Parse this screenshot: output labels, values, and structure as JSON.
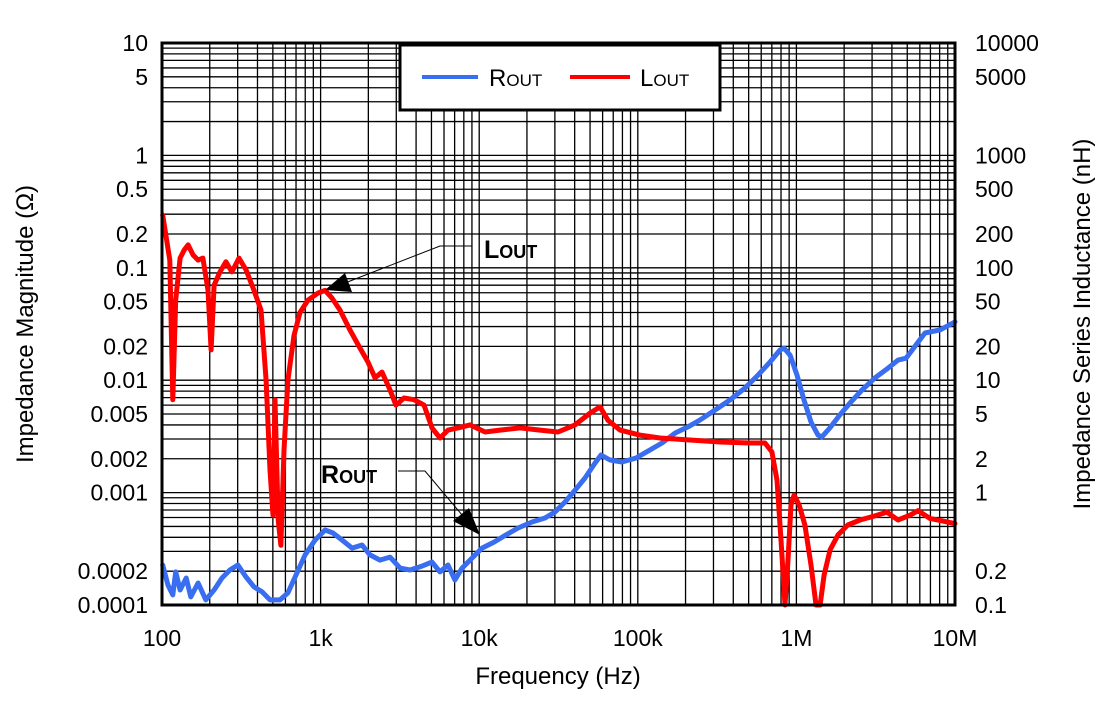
{
  "chart_data": {
    "type": "line",
    "title": "",
    "xlabel": "Frequency (Hz)",
    "ylabel": "Impedance Magnitude (Ω)",
    "y2label": "Impedance Series Inductance (nH)",
    "xscale": "log",
    "yscale": "log",
    "xlim": [
      100,
      10000000
    ],
    "ylim": [
      0.0001,
      10
    ],
    "y2lim": [
      0.1,
      10000
    ],
    "grid": true,
    "legend_position": "top-center",
    "x_ticks": [
      {
        "v": 100,
        "label": "100"
      },
      {
        "v": 1000,
        "label": "1k"
      },
      {
        "v": 10000,
        "label": "10k"
      },
      {
        "v": 100000,
        "label": "100k"
      },
      {
        "v": 1000000,
        "label": "1M"
      },
      {
        "v": 10000000,
        "label": "10M"
      }
    ],
    "y_ticks": [
      {
        "v": 10,
        "label": "10"
      },
      {
        "v": 5,
        "label": "5"
      },
      {
        "v": 1,
        "label": "1"
      },
      {
        "v": 0.5,
        "label": "0.5"
      },
      {
        "v": 0.2,
        "label": "0.2"
      },
      {
        "v": 0.1,
        "label": "0.1"
      },
      {
        "v": 0.05,
        "label": "0.05"
      },
      {
        "v": 0.02,
        "label": "0.02"
      },
      {
        "v": 0.01,
        "label": "0.01"
      },
      {
        "v": 0.005,
        "label": "0.005"
      },
      {
        "v": 0.002,
        "label": "0.002"
      },
      {
        "v": 0.001,
        "label": "0.001"
      },
      {
        "v": 0.0002,
        "label": "0.0002"
      },
      {
        "v": 0.0001,
        "label": "0.0001"
      }
    ],
    "y2_ticks": [
      {
        "v": 10000,
        "label": "10000"
      },
      {
        "v": 5000,
        "label": "5000"
      },
      {
        "v": 1000,
        "label": "1000"
      },
      {
        "v": 500,
        "label": "500"
      },
      {
        "v": 200,
        "label": "200"
      },
      {
        "v": 100,
        "label": "100"
      },
      {
        "v": 50,
        "label": "50"
      },
      {
        "v": 20,
        "label": "20"
      },
      {
        "v": 10,
        "label": "10"
      },
      {
        "v": 5,
        "label": "5"
      },
      {
        "v": 2,
        "label": "2"
      },
      {
        "v": 1,
        "label": "1"
      },
      {
        "v": 0.2,
        "label": "0.2"
      },
      {
        "v": 0.1,
        "label": "0.1"
      }
    ],
    "series": [
      {
        "name": "R",
        "subscript": "OUT",
        "axis": "left",
        "unit": "Ω",
        "color": "#3A6EF0",
        "x": [
          101,
          109,
          117,
          122,
          130,
          142,
          152,
          169,
          189,
          213,
          239,
          268,
          301,
          339,
          380,
          427,
          480,
          555,
          622,
          700,
          798,
          923,
          1067,
          1197,
          1365,
          1578,
          1824,
          2048,
          2370,
          2740,
          3170,
          3660,
          4360,
          5040,
          5662,
          6357,
          7030,
          7800,
          9020,
          10420,
          12400,
          14750,
          17580,
          21530,
          26000,
          30060,
          34750,
          40200,
          46450,
          53700,
          58600,
          66800,
          79500,
          97500,
          119000,
          142000,
          172000,
          207000,
          247000,
          307000,
          381000,
          474000,
          573000,
          682000,
          789000,
          836000,
          912000,
          1009000,
          1117000,
          1236000,
          1368000,
          1449000,
          1626000,
          1879000,
          2178000,
          2592000,
          3133000,
          3784000,
          4375000,
          4912000,
          5600000,
          6470000,
          8040000,
          10000000
        ],
        "y": [
          0.000227,
          0.000151,
          0.000123,
          0.000197,
          0.000136,
          0.000174,
          0.000118,
          0.000157,
          0.000111,
          0.000136,
          0.000174,
          0.000205,
          0.000227,
          0.000177,
          0.000145,
          0.000131,
          0.000111,
          0.000111,
          0.000128,
          0.000185,
          0.000279,
          0.000379,
          0.000465,
          0.000437,
          0.000379,
          0.000321,
          0.000342,
          0.000279,
          0.000251,
          0.000267,
          0.000213,
          0.000205,
          0.000222,
          0.000241,
          0.000197,
          0.000227,
          0.000167,
          0.000213,
          0.000262,
          0.000321,
          0.000363,
          0.00042,
          0.000484,
          0.000548,
          0.000594,
          0.000672,
          0.000825,
          0.00105,
          0.00135,
          0.00183,
          0.00216,
          0.00195,
          0.00187,
          0.00203,
          0.00239,
          0.00276,
          0.00339,
          0.00384,
          0.00443,
          0.00543,
          0.00667,
          0.00853,
          0.0111,
          0.0145,
          0.0186,
          0.0193,
          0.0167,
          0.0111,
          0.00667,
          0.00425,
          0.00325,
          0.00313,
          0.00376,
          0.0049,
          0.00627,
          0.00818,
          0.0105,
          0.0128,
          0.0151,
          0.0157,
          0.0201,
          0.0263,
          0.028,
          0.033
        ]
      },
      {
        "name": "L",
        "subscript": "OUT",
        "axis": "right",
        "unit": "nH",
        "color": "#FF0000",
        "x": [
          101,
          112,
          117,
          122,
          130,
          138,
          146,
          157,
          169,
          181,
          195,
          204,
          213,
          232,
          253,
          276,
          306,
          339,
          380,
          421,
          453,
          480,
          501,
          516,
          540,
          562,
          588,
          622,
          680,
          741,
          834,
          964,
          1067,
          1180,
          1325,
          1531,
          1771,
          1990,
          2204,
          2440,
          2740,
          2985,
          3357,
          3882,
          4490,
          5040,
          5662,
          6357,
          7350,
          8750,
          10890,
          13520,
          18070,
          24160,
          31400,
          40200,
          50000,
          57800,
          64900,
          77200,
          103000,
          138000,
          213000,
          330000,
          509000,
          634000,
          701000,
          755000,
          800000,
          848000,
          885000,
          925000,
          967000,
          1038000,
          1132000,
          1236000,
          1330000,
          1410000,
          1494000,
          1630000,
          1830000,
          2110000,
          2520000,
          3130000,
          3720000,
          4370000,
          5200000,
          5840000,
          6950000,
          10000000
        ],
        "y": [
          295,
          117,
          6.7,
          51.7,
          122,
          144,
          160,
          130,
          117,
          122,
          63,
          18.6,
          70,
          92,
          113,
          92,
          122,
          95.5,
          63,
          42,
          10,
          1.59,
          0.63,
          6.7,
          0.57,
          0.34,
          2.39,
          10,
          25,
          40,
          51.7,
          59.7,
          63,
          53.8,
          42,
          28,
          19.3,
          14.5,
          10.5,
          11.8,
          8.2,
          6.0,
          6.95,
          6.7,
          6.0,
          3.76,
          3.06,
          3.6,
          3.76,
          4.0,
          3.46,
          3.6,
          3.76,
          3.6,
          3.46,
          4.0,
          5.1,
          5.8,
          4.4,
          3.6,
          3.25,
          3.06,
          2.94,
          2.82,
          2.76,
          2.76,
          2.3,
          1.29,
          0.38,
          0.1,
          0.25,
          0.78,
          0.95,
          0.78,
          0.515,
          0.227,
          0.1,
          0.1,
          0.185,
          0.31,
          0.42,
          0.515,
          0.57,
          0.62,
          0.67,
          0.57,
          0.63,
          0.69,
          0.59,
          0.53
        ]
      }
    ],
    "annotations": [
      {
        "name": "L",
        "subscript": "OUT",
        "points_to_series": "L"
      },
      {
        "name": "R",
        "subscript": "OUT",
        "points_to_series": "R"
      }
    ]
  }
}
